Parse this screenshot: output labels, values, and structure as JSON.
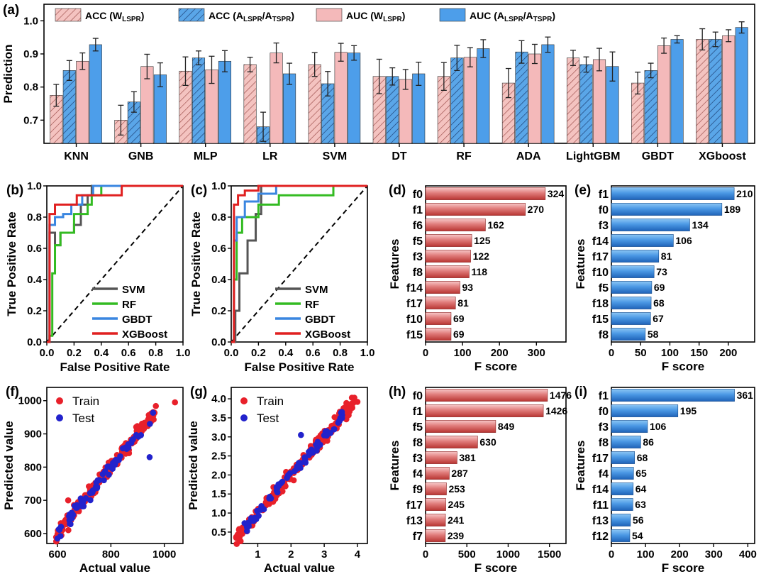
{
  "colors": {
    "acc_w": "#f4c3c0",
    "acc_a": "#5aa6e8",
    "auc_w": "#f4b9ba",
    "auc_a": "#4d9eea",
    "red_bar_light": "#f4b1b1",
    "red_bar_dark": "#c8413e",
    "blue_bar_light": "#6db3f0",
    "blue_bar_dark": "#2a72c6",
    "svm": "#555555",
    "rf": "#33bb22",
    "gbdt": "#3a86e0",
    "xgb": "#e02020",
    "train": "#e8202a",
    "test": "#2222cc"
  },
  "chart_data": [
    {
      "panel": "(a)",
      "type": "bar",
      "ylabel": "Prediction",
      "xlabel": "",
      "ylim": [
        0.63,
        1.05
      ],
      "yticks": [
        "0.7",
        "0.8",
        "0.9",
        "1.0"
      ],
      "categories": [
        "KNN",
        "GNB",
        "MLP",
        "LR",
        "SVM",
        "DT",
        "RF",
        "ADA",
        "LightGBM",
        "GBDT",
        "XGboost"
      ],
      "legend_position": "top",
      "series": [
        {
          "name": "ACC (W",
          "name_sub": "LSPR",
          "name_close": ")",
          "hatched": true,
          "values": [
            0.775,
            0.7,
            0.848,
            0.868,
            0.868,
            0.832,
            0.832,
            0.812,
            0.888,
            0.812,
            0.944
          ],
          "errors": [
            0.033,
            0.045,
            0.043,
            0.022,
            0.036,
            0.052,
            0.042,
            0.044,
            0.023,
            0.033,
            0.032
          ]
        },
        {
          "name": "ACC (A",
          "name_sub": "LSPR",
          "name_mid": "/A",
          "name_sub2": "TSPR",
          "name_close": ")",
          "hatched": true,
          "values": [
            0.85,
            0.755,
            0.888,
            0.68,
            0.81,
            0.832,
            0.888,
            0.906,
            0.868,
            0.85,
            0.944
          ],
          "errors": [
            0.03,
            0.031,
            0.021,
            0.044,
            0.037,
            0.026,
            0.038,
            0.034,
            0.023,
            0.022,
            0.022
          ]
        },
        {
          "name": "AUC (W",
          "name_sub": "LSPR",
          "name_close": ")",
          "hatched": false,
          "values": [
            0.878,
            0.862,
            0.852,
            0.903,
            0.905,
            0.823,
            0.89,
            0.9,
            0.883,
            0.925,
            0.955
          ],
          "errors": [
            0.025,
            0.037,
            0.041,
            0.03,
            0.027,
            0.03,
            0.029,
            0.029,
            0.034,
            0.023,
            0.018
          ]
        },
        {
          "name": "AUC (A",
          "name_sub": "LSPR",
          "name_mid": "/A",
          "name_sub2": "TSPR",
          "name_close": ")",
          "hatched": false,
          "values": [
            0.928,
            0.837,
            0.878,
            0.84,
            0.903,
            0.84,
            0.916,
            0.928,
            0.862,
            0.944,
            0.98
          ],
          "errors": [
            0.019,
            0.036,
            0.032,
            0.032,
            0.022,
            0.035,
            0.027,
            0.023,
            0.044,
            0.011,
            0.017
          ]
        }
      ]
    },
    {
      "panel": "(b)",
      "type": "line",
      "xlabel": "False Positive Rate",
      "ylabel": "True Positive Rate",
      "xlim": [
        0,
        1
      ],
      "ylim": [
        0,
        1
      ],
      "xticks": [
        "0.0",
        "0.2",
        "0.4",
        "0.6",
        "0.8",
        "1.0"
      ],
      "yticks": [
        "0.0",
        "0.2",
        "0.4",
        "0.6",
        "0.8",
        "1.0"
      ],
      "legend_position": "bottom-right",
      "series": [
        {
          "name": "SVM",
          "x": [
            0,
            0.02,
            0.02,
            0.06,
            0.06,
            0.1,
            0.1,
            0.2,
            0.2,
            0.25,
            0.25,
            0.3,
            0.3,
            0.33,
            0.33,
            1.0
          ],
          "y": [
            0,
            0,
            0.7,
            0.7,
            0.62,
            0.62,
            0.7,
            0.7,
            0.75,
            0.75,
            0.88,
            0.88,
            0.94,
            0.94,
            1.0,
            1.0
          ]
        },
        {
          "name": "RF",
          "x": [
            0,
            0.02,
            0.02,
            0.04,
            0.04,
            0.06,
            0.06,
            0.1,
            0.1,
            0.2,
            0.2,
            0.3,
            0.3,
            0.33,
            0.33,
            0.4,
            0.4,
            1.0
          ],
          "y": [
            0,
            0,
            0.04,
            0.04,
            0.44,
            0.44,
            0.62,
            0.62,
            0.7,
            0.7,
            0.82,
            0.82,
            0.88,
            0.88,
            0.94,
            0.94,
            1.0,
            1.0
          ]
        },
        {
          "name": "GBDT",
          "x": [
            0,
            0.02,
            0.02,
            0.06,
            0.06,
            0.12,
            0.12,
            0.18,
            0.18,
            0.26,
            0.26,
            0.34,
            0.34,
            1.0
          ],
          "y": [
            0,
            0,
            0.75,
            0.75,
            0.8,
            0.8,
            0.82,
            0.82,
            0.88,
            0.88,
            0.94,
            0.94,
            1.0,
            1.0
          ]
        },
        {
          "name": "XGBoost",
          "x": [
            0,
            0.02,
            0.02,
            0.06,
            0.06,
            0.22,
            0.22,
            0.55,
            0.55,
            1.0
          ],
          "y": [
            0,
            0,
            0.82,
            0.82,
            0.88,
            0.88,
            0.94,
            0.94,
            1.0,
            1.0
          ]
        }
      ]
    },
    {
      "panel": "(c)",
      "type": "line",
      "xlabel": "False Positive Rate",
      "ylabel": "True Positive Rate",
      "xlim": [
        0,
        1
      ],
      "ylim": [
        0,
        1
      ],
      "xticks": [
        "0.0",
        "0.2",
        "0.4",
        "0.6",
        "0.8",
        "1.0"
      ],
      "yticks": [
        "0.0",
        "0.2",
        "0.4",
        "0.6",
        "0.8",
        "1.0"
      ],
      "legend_position": "bottom-right",
      "series": [
        {
          "name": "SVM",
          "x": [
            0,
            0.03,
            0.03,
            0.06,
            0.06,
            0.12,
            0.12,
            0.18,
            0.18,
            0.22,
            0.22,
            1.0
          ],
          "y": [
            0,
            0,
            0.2,
            0.2,
            0.44,
            0.44,
            0.65,
            0.65,
            0.82,
            0.82,
            1.0,
            1.0
          ]
        },
        {
          "name": "RF",
          "x": [
            0,
            0.02,
            0.02,
            0.04,
            0.04,
            0.08,
            0.08,
            0.2,
            0.2,
            0.35,
            0.35,
            0.75,
            0.75,
            1.0
          ],
          "y": [
            0,
            0,
            0.4,
            0.4,
            0.7,
            0.7,
            0.8,
            0.8,
            0.88,
            0.88,
            0.94,
            0.94,
            1.0,
            1.0
          ]
        },
        {
          "name": "GBDT",
          "x": [
            0,
            0.02,
            0.02,
            0.04,
            0.04,
            0.1,
            0.1,
            0.2,
            0.2,
            0.33,
            0.33,
            1.0
          ],
          "y": [
            0,
            0,
            0.65,
            0.65,
            0.8,
            0.8,
            0.9,
            0.9,
            0.95,
            0.95,
            1.0,
            1.0
          ]
        },
        {
          "name": "XGBoost",
          "x": [
            0,
            0.02,
            0.02,
            0.05,
            0.05,
            0.1,
            0.1,
            0.2,
            0.2,
            1.0
          ],
          "y": [
            0,
            0,
            0.88,
            0.88,
            0.94,
            0.94,
            0.97,
            0.97,
            1.0,
            1.0
          ]
        }
      ]
    },
    {
      "panel": "(d)",
      "type": "bar",
      "orientation": "horizontal",
      "color_scheme": "red",
      "xlabel": "F score",
      "ylabel": "Features",
      "xlim": [
        0,
        380
      ],
      "xticks": [
        0,
        100,
        200,
        300
      ],
      "categories": [
        "f0",
        "f1",
        "f6",
        "f5",
        "f3",
        "f8",
        "f14",
        "f17",
        "f10",
        "f15"
      ],
      "values": [
        324,
        270,
        162,
        125,
        122,
        118,
        93,
        81,
        69,
        69
      ],
      "labels": [
        "324",
        "270",
        "162",
        "125",
        "122",
        "118",
        "93",
        "81",
        "69",
        "69"
      ]
    },
    {
      "panel": "(e)",
      "type": "bar",
      "orientation": "horizontal",
      "color_scheme": "blue",
      "xlabel": "F score",
      "ylabel": "Features",
      "xlim": [
        0,
        245
      ],
      "xticks": [
        0,
        50,
        100,
        150,
        200
      ],
      "categories": [
        "f1",
        "f0",
        "f3",
        "f14",
        "f17",
        "f10",
        "f5",
        "f18",
        "f15",
        "f8"
      ],
      "values": [
        210,
        189,
        134,
        106,
        81,
        73,
        69,
        68,
        67,
        58
      ],
      "labels": [
        "210",
        "189",
        "134",
        "106",
        "81",
        "73",
        "69",
        "68",
        "67",
        "58"
      ]
    },
    {
      "panel": "(f)",
      "type": "scatter",
      "xlabel": "Actual value",
      "ylabel": "Predicted value",
      "xlim": [
        560,
        1070
      ],
      "ylim": [
        570,
        1040
      ],
      "xticks": [
        600,
        800,
        1000
      ],
      "yticks": [
        600,
        700,
        800,
        900,
        1000
      ],
      "legend_position": "top-left",
      "series": [
        {
          "name": "Train",
          "scale_x": [
            600,
            1040
          ],
          "scale_y": [
            590,
            1000
          ],
          "cluster": {
            "x_min": 595,
            "x_max": 970,
            "jitter": 35,
            "count": 190,
            "seed": 11
          },
          "outliers": [
            [
              1040,
              995
            ],
            [
              610,
              605
            ],
            [
              640,
              700
            ]
          ]
        },
        {
          "name": "Test",
          "cluster": {
            "x_min": 605,
            "x_max": 965,
            "jitter": 32,
            "count": 70,
            "seed": 29
          },
          "outliers": [
            [
              600,
              585
            ],
            [
              945,
              830
            ]
          ]
        }
      ]
    },
    {
      "panel": "(g)",
      "type": "scatter",
      "xlabel": "Actual value",
      "ylabel": "Predicted value",
      "xlim": [
        0.2,
        4.3
      ],
      "ylim": [
        0.2,
        4.3
      ],
      "xticks": [
        1,
        2,
        3,
        4
      ],
      "yticks": [
        "0.5",
        "1.0",
        "1.5",
        "2.0",
        "2.5",
        "3.0",
        "3.5",
        "4.0"
      ],
      "legend_position": "top-left",
      "series": [
        {
          "name": "Train",
          "cluster": {
            "x_min": 0.35,
            "x_max": 3.95,
            "jitter": 0.28,
            "count": 190,
            "seed": 7
          },
          "outliers": [
            [
              0.35,
              0.35
            ],
            [
              4.0,
              3.92
            ]
          ]
        },
        {
          "name": "Test",
          "cluster": {
            "x_min": 0.6,
            "x_max": 3.6,
            "jitter": 0.26,
            "count": 70,
            "seed": 41
          },
          "outliers": [
            [
              2.3,
              3.05
            ]
          ]
        }
      ]
    },
    {
      "panel": "(h)",
      "type": "bar",
      "orientation": "horizontal",
      "color_scheme": "red",
      "xlabel": "F score",
      "ylabel": "Features",
      "xlim": [
        0,
        1700
      ],
      "xticks": [
        0,
        500,
        1000,
        1500
      ],
      "categories": [
        "f0",
        "f1",
        "f5",
        "f8",
        "f3",
        "f4",
        "f9",
        "f17",
        "f13",
        "f7"
      ],
      "values": [
        1476,
        1426,
        849,
        630,
        381,
        287,
        253,
        245,
        241,
        239
      ],
      "labels": [
        "1476",
        "1426",
        "849",
        "630",
        "381",
        "287",
        "253",
        "245",
        "241",
        "239"
      ]
    },
    {
      "panel": "(i)",
      "type": "bar",
      "orientation": "horizontal",
      "color_scheme": "blue",
      "xlabel": "F score",
      "ylabel": "Features",
      "xlim": [
        0,
        420
      ],
      "xticks": [
        0,
        100,
        200,
        300,
        400
      ],
      "categories": [
        "f1",
        "f0",
        "f3",
        "f8",
        "f17",
        "f4",
        "f14",
        "f11",
        "f13",
        "f12"
      ],
      "values": [
        361,
        195,
        106,
        86,
        68,
        65,
        64,
        63,
        56,
        54
      ],
      "labels": [
        "361",
        "195",
        "106",
        "86",
        "68",
        "65",
        "64",
        "63",
        "56",
        "54"
      ]
    }
  ]
}
